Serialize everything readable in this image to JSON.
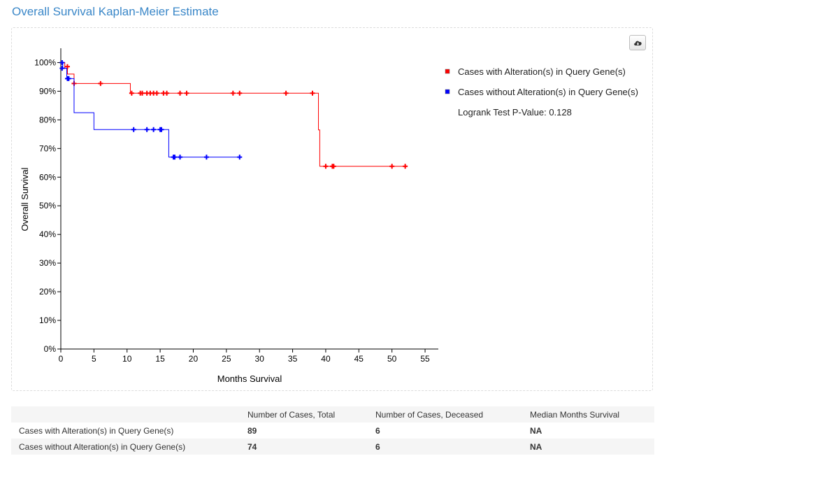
{
  "title": "Overall Survival Kaplan-Meier Estimate",
  "download_icon": "cloud-download-icon",
  "chart_data": {
    "type": "line",
    "step": true,
    "xlabel": "Months Survival",
    "ylabel": "Overall Survival",
    "xlim": [
      0,
      57
    ],
    "ylim": [
      0,
      1.05
    ],
    "xticks": [
      0,
      5,
      10,
      15,
      20,
      25,
      30,
      35,
      40,
      45,
      50,
      55
    ],
    "yticks": [
      0,
      0.1,
      0.2,
      0.3,
      0.4,
      0.5,
      0.6,
      0.7,
      0.8,
      0.9,
      1.0
    ],
    "ytick_labels": [
      "0%",
      "10%",
      "20%",
      "30%",
      "40%",
      "50%",
      "60%",
      "70%",
      "80%",
      "90%",
      "100%"
    ],
    "grid": false,
    "legend_position": "right",
    "series": [
      {
        "name": "Cases with Alteration(s) in Query Gene(s)",
        "color": "#ff0000",
        "steps": [
          [
            0,
            1.0
          ],
          [
            0.6,
            0.98
          ],
          [
            1.0,
            0.96
          ],
          [
            2.0,
            0.927
          ],
          [
            10.5,
            0.893
          ],
          [
            38.9,
            0.765
          ],
          [
            39.1,
            0.638
          ],
          [
            52,
            0.638
          ]
        ],
        "censored": [
          [
            1.0,
            0.986
          ],
          [
            2.0,
            0.927
          ],
          [
            6.0,
            0.927
          ],
          [
            10.7,
            0.893
          ],
          [
            12.0,
            0.893
          ],
          [
            12.3,
            0.893
          ],
          [
            13.0,
            0.893
          ],
          [
            13.5,
            0.893
          ],
          [
            14.0,
            0.893
          ],
          [
            14.5,
            0.893
          ],
          [
            15.5,
            0.893
          ],
          [
            16.0,
            0.893
          ],
          [
            18.0,
            0.893
          ],
          [
            19.0,
            0.893
          ],
          [
            26.0,
            0.893
          ],
          [
            27.0,
            0.893
          ],
          [
            34.0,
            0.893
          ],
          [
            38.0,
            0.893
          ],
          [
            40.0,
            0.638
          ],
          [
            41.0,
            0.638
          ],
          [
            41.2,
            0.638
          ],
          [
            50.0,
            0.638
          ],
          [
            52.0,
            0.638
          ]
        ]
      },
      {
        "name": "Cases without Alteration(s) in Query Gene(s)",
        "color": "#0000ff",
        "steps": [
          [
            0,
            1.0
          ],
          [
            0.3,
            0.98
          ],
          [
            0.9,
            0.944
          ],
          [
            2.0,
            0.825
          ],
          [
            5.0,
            0.766
          ],
          [
            16.3,
            0.67
          ],
          [
            27,
            0.67
          ]
        ],
        "censored": [
          [
            0.2,
            1.0
          ],
          [
            0.2,
            0.98
          ],
          [
            1.0,
            0.944
          ],
          [
            1.2,
            0.944
          ],
          [
            11.0,
            0.766
          ],
          [
            13.0,
            0.766
          ],
          [
            14.0,
            0.766
          ],
          [
            15.0,
            0.766
          ],
          [
            15.2,
            0.766
          ],
          [
            17.0,
            0.67
          ],
          [
            17.2,
            0.67
          ],
          [
            18.0,
            0.67
          ],
          [
            22.0,
            0.67
          ],
          [
            27.0,
            0.67
          ]
        ]
      }
    ],
    "annotation": "Logrank Test P-Value: 0.128"
  },
  "table": {
    "headers": [
      "",
      "Number of Cases, Total",
      "Number of Cases, Deceased",
      "Median Months Survival"
    ],
    "rows": [
      [
        "Cases with Alteration(s) in Query Gene(s)",
        "89",
        "6",
        "NA"
      ],
      [
        "Cases without Alteration(s) in Query Gene(s)",
        "74",
        "6",
        "NA"
      ]
    ]
  }
}
